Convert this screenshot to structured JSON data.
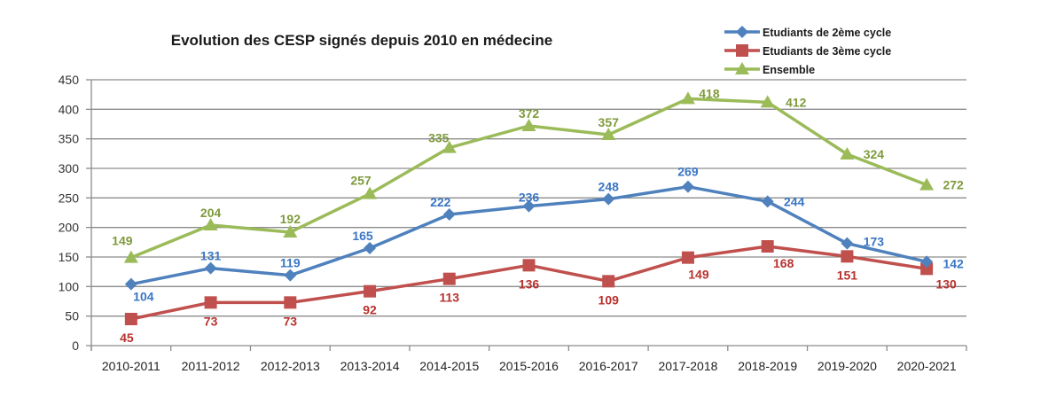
{
  "chart_data": {
    "type": "line",
    "title": "Evolution des CESP signés depuis 2010 en médecine",
    "xlabel": "",
    "ylabel": "",
    "ylim": [
      0,
      450
    ],
    "yticks": [
      0,
      50,
      100,
      150,
      200,
      250,
      300,
      350,
      400,
      450
    ],
    "grid": true,
    "legend_position": "top-right",
    "categories": [
      "2010-2011",
      "2011-2012",
      "2012-2013",
      "2013-2014",
      "2014-2015",
      "2015-2016",
      "2016-2017",
      "2017-2018",
      "2018-2019",
      "2019-2020",
      "2020-2021"
    ],
    "series": [
      {
        "name": "Etudiants de 2ème cycle",
        "color": "#4f81bd",
        "label_color": "#3a76c4",
        "marker": "diamond",
        "values": [
          104,
          131,
          119,
          165,
          222,
          236,
          248,
          269,
          244,
          173,
          142
        ]
      },
      {
        "name": "Etudiants de 3ème cycle",
        "color": "#c0504d",
        "label_color": "#b8312e",
        "marker": "square",
        "values": [
          45,
          73,
          73,
          92,
          113,
          136,
          109,
          149,
          168,
          151,
          130
        ]
      },
      {
        "name": "Ensemble",
        "color": "#9bbb59",
        "label_color": "#7f9a3c",
        "marker": "triangle",
        "values": [
          149,
          204,
          192,
          257,
          335,
          372,
          357,
          418,
          412,
          324,
          272
        ]
      }
    ]
  }
}
